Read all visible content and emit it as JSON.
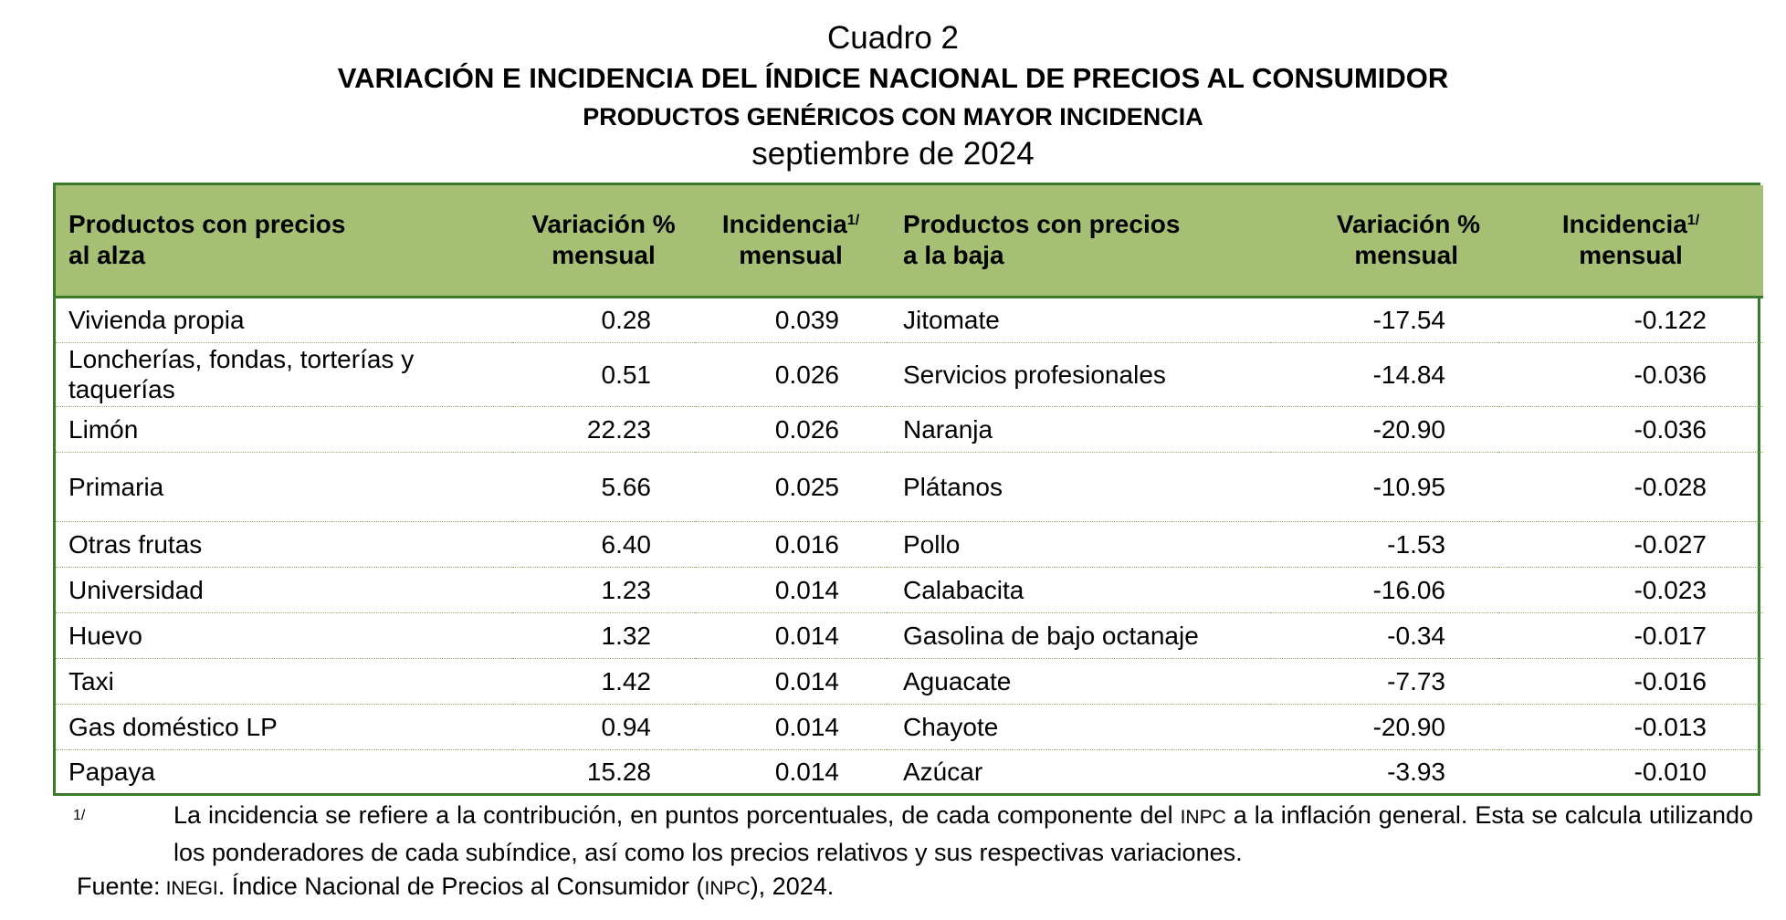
{
  "title": {
    "cuadro": "Cuadro 2",
    "main": "VARIACIÓN E INCIDENCIA DEL ÍNDICE NACIONAL DE PRECIOS AL CONSUMIDOR",
    "sub": "PRODUCTOS GENÉRICOS CON MAYOR INCIDENCIA",
    "period": "septiembre de 2024"
  },
  "table": {
    "headers": {
      "up_products_l1": "Productos con precios",
      "up_products_l2": "al alza",
      "variation_l1": "Variación %",
      "variation_l2": "mensual",
      "incidence_l1": "Incidencia",
      "incidence_sup": "1/",
      "incidence_l2": "mensual",
      "down_products_l1": "Productos con precios",
      "down_products_l2": "a la baja"
    },
    "rows": [
      {
        "up": "Vivienda propia",
        "up_var": "0.28",
        "up_inc": "0.039",
        "down": "Jitomate",
        "down_var": "-17.54",
        "down_inc": "-0.122"
      },
      {
        "up": "Loncherías, fondas, torterías y taquerías",
        "up_var": "0.51",
        "up_inc": "0.026",
        "down": "Servicios profesionales",
        "down_var": "-14.84",
        "down_inc": "-0.036"
      },
      {
        "up": "Limón",
        "up_var": "22.23",
        "up_inc": "0.026",
        "down": "Naranja",
        "down_var": "-20.90",
        "down_inc": "-0.036"
      },
      {
        "up": "Primaria",
        "up_var": "5.66",
        "up_inc": "0.025",
        "down": "Plátanos",
        "down_var": "-10.95",
        "down_inc": "-0.028"
      },
      {
        "up": "Otras frutas",
        "up_var": "6.40",
        "up_inc": "0.016",
        "down": "Pollo",
        "down_var": "-1.53",
        "down_inc": "-0.027"
      },
      {
        "up": "Universidad",
        "up_var": "1.23",
        "up_inc": "0.014",
        "down": "Calabacita",
        "down_var": "-16.06",
        "down_inc": "-0.023"
      },
      {
        "up": "Huevo",
        "up_var": "1.32",
        "up_inc": "0.014",
        "down": "Gasolina de bajo octanaje",
        "down_var": "-0.34",
        "down_inc": "-0.017"
      },
      {
        "up": "Taxi",
        "up_var": "1.42",
        "up_inc": "0.014",
        "down": "Aguacate",
        "down_var": "-7.73",
        "down_inc": "-0.016"
      },
      {
        "up": "Gas doméstico LP",
        "up_var": "0.94",
        "up_inc": "0.014",
        "down": "Chayote",
        "down_var": "-20.90",
        "down_inc": "-0.013"
      },
      {
        "up": "Papaya",
        "up_var": "15.28",
        "up_inc": "0.014",
        "down": "Azúcar",
        "down_var": "-3.93",
        "down_inc": "-0.010"
      }
    ]
  },
  "footnote": {
    "mark": "1/",
    "text_a": "La incidencia se refiere a la contribución, en puntos porcentuales, de cada componente del ",
    "inpc": "INPC",
    "text_b": " a la inflación general. Esta se calcula utilizando los ponderadores de cada subíndice, así como los precios relativos y sus respectivas variaciones."
  },
  "source": {
    "label": "Fuente:",
    "inegi": "INEGI",
    "text_a": ". Índice Nacional de Precios al Consumidor (",
    "inpc": "INPC",
    "text_b": "), 2024."
  },
  "colors": {
    "header_bg": "#a5bf74",
    "border": "#3a7a2a",
    "row_divider": "#8fb06a"
  }
}
